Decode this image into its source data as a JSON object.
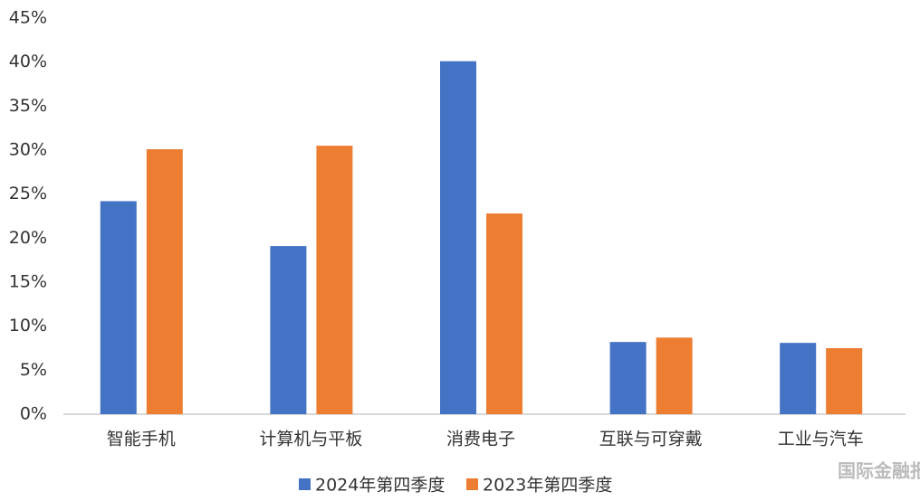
{
  "chart_data": {
    "type": "bar",
    "categories": [
      "智能手机",
      "计算机与平板",
      "消费电子",
      "互联与可穿戴",
      "工业与汽车"
    ],
    "series": [
      {
        "name": "2024年第四季度",
        "color": "#4472c4",
        "values": [
          24.2,
          19.1,
          40.1,
          8.2,
          8.1
        ]
      },
      {
        "name": "2023年第四季度",
        "color": "#ed7d31",
        "values": [
          30.1,
          30.5,
          22.8,
          8.7,
          7.5
        ]
      }
    ],
    "ylim": [
      0,
      45
    ],
    "yticks": [
      {
        "value": 0,
        "label": "0%"
      },
      {
        "value": 5,
        "label": "5%"
      },
      {
        "value": 10,
        "label": "10%"
      },
      {
        "value": 15,
        "label": "15%"
      },
      {
        "value": 20,
        "label": "20%"
      },
      {
        "value": 25,
        "label": "25%"
      },
      {
        "value": 30,
        "label": "30%"
      },
      {
        "value": 35,
        "label": "35%"
      },
      {
        "value": 40,
        "label": "40%"
      },
      {
        "value": 45,
        "label": "45%"
      }
    ],
    "grid": false,
    "legend": "bottom",
    "watermark": "国际金融报"
  }
}
